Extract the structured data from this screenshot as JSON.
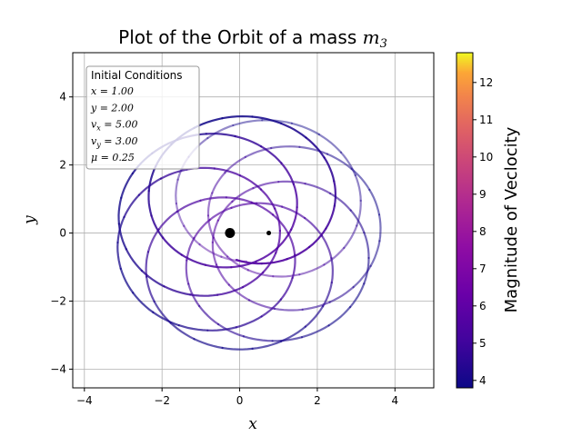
{
  "chart_data": {
    "type": "line",
    "title": {
      "prefix": "Plot of the Orbit of a mass ",
      "math": "m",
      "sub": "3"
    },
    "xlabel": "x",
    "ylabel": "y",
    "xlim": [
      -4.3,
      5.0
    ],
    "ylim": [
      -4.55,
      5.3
    ],
    "xticks": [
      -4,
      -2,
      0,
      2,
      4
    ],
    "yticks": [
      -4,
      -2,
      0,
      2,
      4
    ],
    "xtick_labels": [
      "−4",
      "−2",
      "0",
      "2",
      "4"
    ],
    "ytick_labels": [
      "−4",
      "−2",
      "0",
      "2",
      "4"
    ],
    "grid": true,
    "colormap": "plasma",
    "masses": [
      {
        "x": -0.25,
        "y": 0.0,
        "size": "large"
      },
      {
        "x": 0.75,
        "y": 0.0,
        "size": "small"
      }
    ],
    "orbit": {
      "start": [
        0.92,
        2.0
      ],
      "end": [
        -2.75,
        -1.92
      ],
      "precession_center": [
        0.2,
        0.0
      ],
      "epicycle_radius": 2.25,
      "guiding_radius": 1.3,
      "loops": 7,
      "speed_range": [
        3.9,
        5.6
      ]
    },
    "colorbar": {
      "label": "Magnitude of Veclocity",
      "min": 3.8,
      "max": 12.8,
      "ticks": [
        4,
        5,
        6,
        7,
        8,
        9,
        10,
        11,
        12
      ],
      "tick_labels": [
        "4",
        "5",
        "6",
        "7",
        "8",
        "9",
        "10",
        "11",
        "12"
      ]
    },
    "legend": {
      "title": "Initial Conditions",
      "placement": "upper-left",
      "entries": [
        {
          "symbol": "x",
          "sub": "",
          "value": "= 1.00"
        },
        {
          "symbol": "y",
          "sub": "",
          "value": "= 2.00"
        },
        {
          "symbol": "v",
          "sub": "x",
          "value": "= 5.00"
        },
        {
          "symbol": "v",
          "sub": "y",
          "value": "= 3.00"
        },
        {
          "symbol": "μ",
          "sub": "",
          "value": "= 0.25"
        }
      ]
    }
  }
}
